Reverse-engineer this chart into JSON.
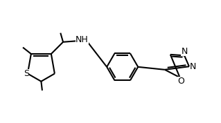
{
  "bg_color": "#ffffff",
  "line_color": "#000000",
  "lw": 1.5,
  "figsize": [
    3.19,
    1.78
  ],
  "dpi": 100,
  "xlim": [
    0,
    10
  ],
  "ylim": [
    0,
    5.6
  ]
}
